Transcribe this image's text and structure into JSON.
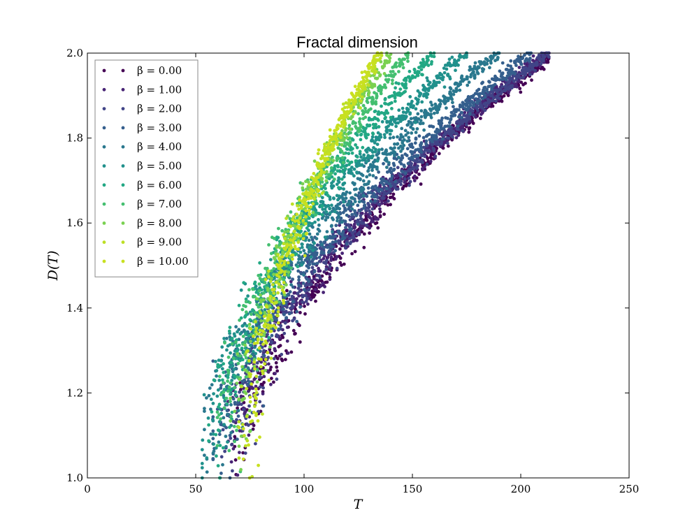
{
  "chart_data": {
    "type": "scatter",
    "title": "Fractal dimension",
    "xlabel": "T",
    "ylabel": "D(T)",
    "xlim": [
      0,
      250
    ],
    "ylim": [
      1.0,
      2.0
    ],
    "xticks": [
      0,
      50,
      100,
      150,
      200,
      250
    ],
    "yticks": [
      1.0,
      1.2,
      1.4,
      1.6,
      1.8,
      2.0
    ],
    "xtick_labels": [
      "0",
      "50",
      "100",
      "150",
      "200",
      "250"
    ],
    "ytick_labels": [
      "1.0",
      "1.2",
      "1.4",
      "1.6",
      "1.8",
      "2.0"
    ],
    "grid": false,
    "legend_position": "top-left",
    "colormap": "viridis",
    "series": [
      {
        "name": "β = 0.00",
        "color": "#440154",
        "t_start": 70,
        "t_sat": 213,
        "d_end": 1.99,
        "spread": 4.5
      },
      {
        "name": "β = 1.00",
        "color": "#482475",
        "t_start": 67,
        "t_sat": 213,
        "d_end": 2.0,
        "spread": 4.5
      },
      {
        "name": "β = 2.00",
        "color": "#414487",
        "t_start": 64,
        "t_sat": 213,
        "d_end": 2.0,
        "spread": 4.5
      },
      {
        "name": "β = 3.00",
        "color": "#355f8d",
        "t_start": 60,
        "t_sat": 205,
        "d_end": 2.0,
        "spread": 5
      },
      {
        "name": "β = 4.00",
        "color": "#2a788e",
        "t_start": 56,
        "t_sat": 190,
        "d_end": 2.0,
        "spread": 5
      },
      {
        "name": "β = 5.00",
        "color": "#21918c",
        "t_start": 55,
        "t_sat": 175,
        "d_end": 2.0,
        "spread": 5
      },
      {
        "name": "β = 6.00",
        "color": "#22a884",
        "t_start": 58,
        "t_sat": 160,
        "d_end": 2.0,
        "spread": 5
      },
      {
        "name": "β = 7.00",
        "color": "#44bf70",
        "t_start": 62,
        "t_sat": 148,
        "d_end": 2.0,
        "spread": 5
      },
      {
        "name": "β = 8.00",
        "color": "#7ad151",
        "t_start": 68,
        "t_sat": 140,
        "d_end": 2.0,
        "spread": 4
      },
      {
        "name": "β = 9.00",
        "color": "#bddf26",
        "t_start": 72,
        "t_sat": 136,
        "d_end": 2.0,
        "spread": 3.5
      },
      {
        "name": "β = 10.00",
        "color": "#c8e020",
        "t_start": 74,
        "t_sat": 134,
        "d_end": 2.0,
        "spread": 3
      }
    ]
  }
}
